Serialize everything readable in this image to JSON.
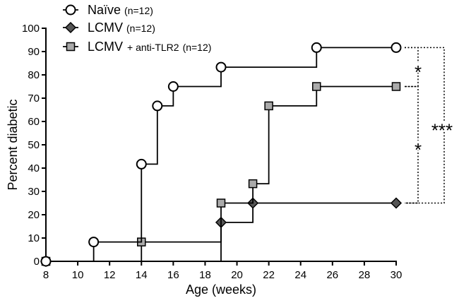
{
  "chart_data": {
    "type": "line",
    "xlabel": "Age  (weeks)",
    "ylabel": "Percent diabetic",
    "xlim": [
      8,
      30
    ],
    "ylim": [
      0,
      100
    ],
    "xticks": [
      8,
      10,
      12,
      14,
      16,
      18,
      20,
      22,
      24,
      26,
      28,
      30
    ],
    "yticks": [
      0,
      10,
      20,
      30,
      40,
      50,
      60,
      70,
      80,
      90,
      100
    ],
    "grid": false,
    "legend_position": "top-left",
    "series": [
      {
        "name": "Naïve",
        "n_label": "(n=12)",
        "marker": "circle",
        "fill": "#ffffff",
        "x": [
          8,
          11,
          14,
          15,
          16,
          19,
          25,
          30
        ],
        "y": [
          0,
          8.3,
          41.7,
          66.7,
          75,
          83.3,
          91.7,
          91.7
        ]
      },
      {
        "name": "LCMV",
        "n_label": "(n=12)",
        "marker": "diamond",
        "fill": "#555555",
        "x": [
          8,
          19,
          21,
          30
        ],
        "y": [
          0,
          16.7,
          25,
          25
        ]
      },
      {
        "name": "LCMV",
        "name_suffix": "+ anti-TLR2",
        "n_label": "(n=12)",
        "marker": "square",
        "fill": "#aaaaaa",
        "x": [
          8,
          14,
          19,
          21,
          22,
          25,
          30
        ],
        "y": [
          0,
          8.3,
          25,
          33.3,
          66.7,
          75,
          75
        ]
      }
    ],
    "annotations": [
      {
        "label": "*",
        "between": [
          "Naïve",
          "LCMV + anti-TLR2"
        ],
        "y_top": 91.7,
        "y_bottom": 75
      },
      {
        "label": "*",
        "between": [
          "LCMV + anti-TLR2",
          "LCMV"
        ],
        "y_top": 75,
        "y_bottom": 25
      },
      {
        "label": "***",
        "between": [
          "Naïve",
          "LCMV"
        ],
        "y_top": 91.7,
        "y_bottom": 25
      }
    ]
  }
}
